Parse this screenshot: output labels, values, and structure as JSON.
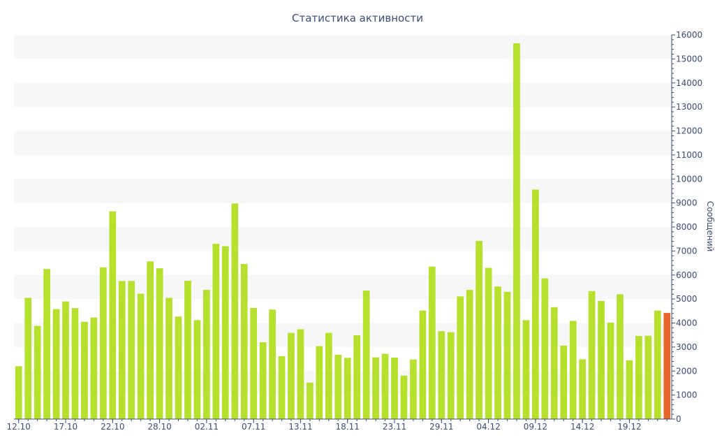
{
  "chart_data": {
    "type": "bar",
    "title": "Статистика активности",
    "xlabel": "",
    "ylabel": "Сообщений",
    "ylim": [
      0,
      16000
    ],
    "yticks": [
      0,
      1000,
      2000,
      3000,
      4000,
      5000,
      6000,
      7000,
      8000,
      9000,
      10000,
      11000,
      12000,
      13000,
      14000,
      15000,
      16000
    ],
    "y_axis_side": "right",
    "grid": "alternating horizontal bands",
    "legend": "none",
    "colors": {
      "bar": "#b5e02b",
      "highlight": "#e8662a",
      "text": "#3b4b7a",
      "band": "#f7f7f7"
    },
    "x_tick_labels": [
      {
        "index": 0,
        "label": "12.10"
      },
      {
        "index": 5,
        "label": "17.10"
      },
      {
        "index": 10,
        "label": "22.10"
      },
      {
        "index": 15,
        "label": "28.10"
      },
      {
        "index": 20,
        "label": "02.11"
      },
      {
        "index": 25,
        "label": "07.11"
      },
      {
        "index": 30,
        "label": "13.11"
      },
      {
        "index": 35,
        "label": "18.11"
      },
      {
        "index": 40,
        "label": "23.11"
      },
      {
        "index": 45,
        "label": "29.11"
      },
      {
        "index": 50,
        "label": "04.12"
      },
      {
        "index": 55,
        "label": "09.12"
      },
      {
        "index": 60,
        "label": "14.12"
      },
      {
        "index": 65,
        "label": "19.12"
      }
    ],
    "values": [
      2200,
      5050,
      3880,
      6250,
      4580,
      4900,
      4620,
      4050,
      4230,
      6320,
      8650,
      5750,
      5750,
      5220,
      6570,
      6280,
      5050,
      4270,
      5760,
      4120,
      5380,
      7300,
      7200,
      8980,
      6460,
      4630,
      3200,
      4560,
      2620,
      3590,
      3740,
      1520,
      3040,
      3590,
      2680,
      2550,
      3490,
      5350,
      2570,
      2720,
      2560,
      1810,
      2480,
      4520,
      6350,
      3660,
      3620,
      5110,
      5380,
      7420,
      6300,
      5520,
      5300,
      15650,
      4120,
      9560,
      5860,
      4660,
      3060,
      4090,
      2490,
      5330,
      4920,
      4020,
      5200,
      2450,
      3460,
      3470,
      4520,
      4420
    ],
    "highlight_index": 69
  }
}
